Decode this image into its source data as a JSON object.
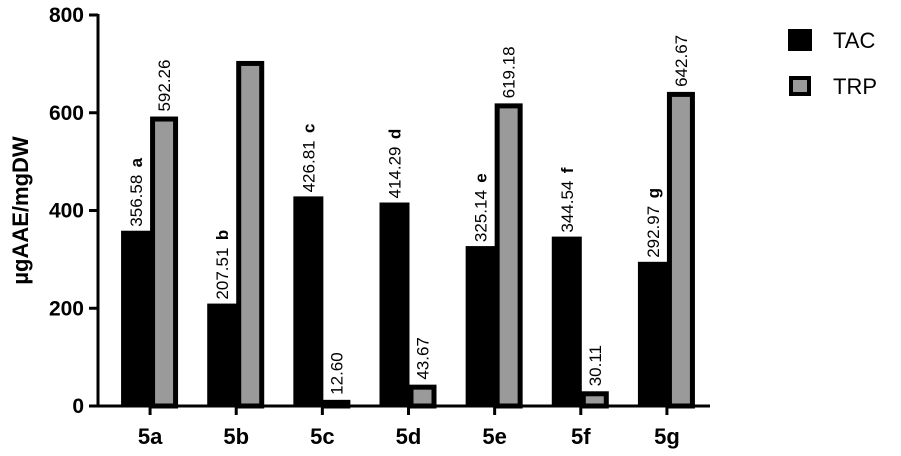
{
  "chart_data": {
    "type": "bar",
    "ylabel": "µgAAE/mgDW",
    "ylim": [
      0,
      800
    ],
    "yticks": [
      "0",
      "200",
      "400",
      "600",
      "800"
    ],
    "categories": [
      "5a",
      "5b",
      "5c",
      "5d",
      "5e",
      "5f",
      "5g"
    ],
    "series": [
      {
        "name": "TAC",
        "color": "#000000",
        "values": [
          356.58,
          207.51,
          426.81,
          414.29,
          325.14,
          344.54,
          292.97
        ],
        "labels": [
          "356.58",
          "207.51",
          "426.81",
          "414.29",
          "325.14",
          "344.54",
          "292.97"
        ],
        "letters": [
          "a",
          "b",
          "c",
          "d",
          "e",
          "f",
          "g"
        ]
      },
      {
        "name": "TRP",
        "color": "#9a9a9a",
        "values": [
          592.26,
          706,
          12.6,
          43.67,
          619.18,
          30.11,
          642.67
        ],
        "labels": [
          "592.26",
          "",
          "12.60",
          "43.67",
          "619.18",
          "30.11",
          "642.67"
        ]
      }
    ],
    "legend_position": "top-right",
    "grid": false
  }
}
